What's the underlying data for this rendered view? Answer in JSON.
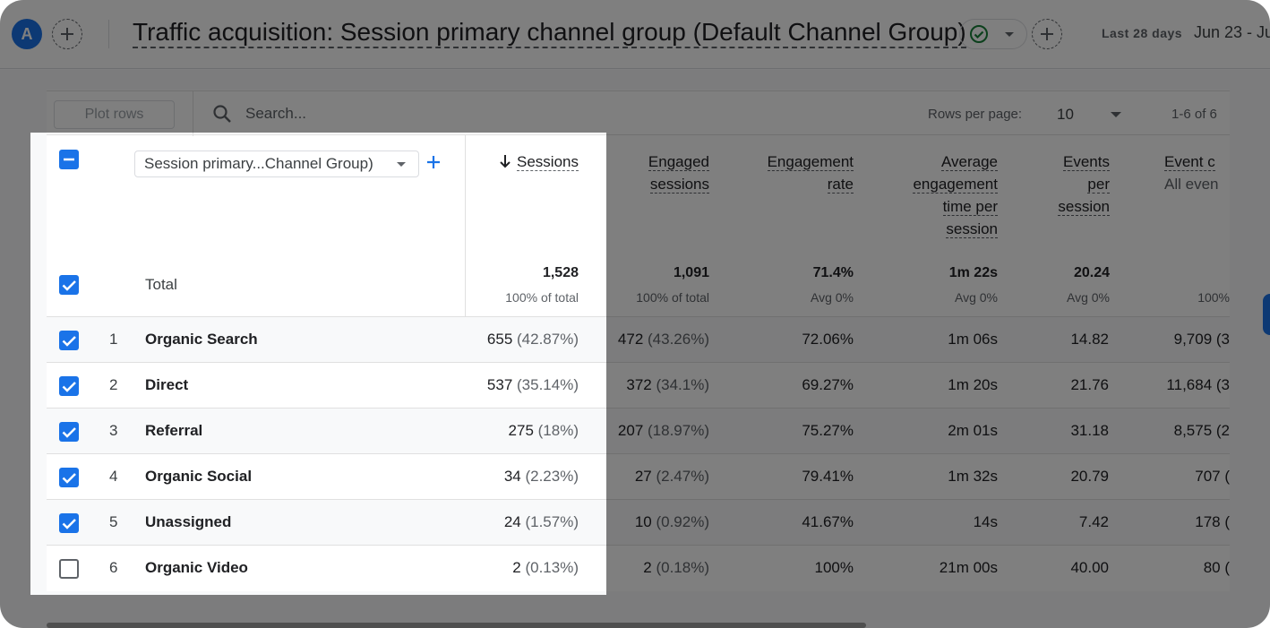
{
  "header": {
    "avatar_letter": "A",
    "title": "Traffic acquisition: Session primary channel group (Default Channel Group)",
    "date_label": "Last 28 days",
    "date_range": "Jun 23 - Ju"
  },
  "toolbar": {
    "plot_rows_label": "Plot rows",
    "search_placeholder": "Search...",
    "rows_per_page_label": "Rows per page:",
    "rows_per_page_value": "10",
    "pagination": "1-6 of 6"
  },
  "table": {
    "dimension_label": "Session primary...Channel Group)",
    "columns": {
      "sessions": "Sessions",
      "engaged": [
        "Engaged",
        "sessions"
      ],
      "engagement_rate": [
        "Engagement",
        "rate"
      ],
      "avg_time": [
        "Average",
        "engagement",
        "time per",
        "session"
      ],
      "events_per": [
        "Events",
        "per",
        "session"
      ],
      "event_count": "Event c",
      "event_count_sub": "All even"
    },
    "total": {
      "label": "Total",
      "sessions": "1,528",
      "sessions_sub": "100% of total",
      "engaged": "1,091",
      "engaged_sub": "100% of total",
      "engagement_rate": "71.4%",
      "engagement_rate_sub": "Avg 0%",
      "avg_time": "1m 22s",
      "avg_time_sub": "Avg 0%",
      "events_per": "20.24",
      "events_per_sub": "Avg 0%",
      "event_count_sub": "100%"
    },
    "rows": [
      {
        "idx": "1",
        "name": "Organic Search",
        "sessions": "655",
        "sessions_pct": "(42.87%)",
        "engaged": "472",
        "engaged_pct": "(43.26%)",
        "rate": "72.06%",
        "time": "1m 06s",
        "events": "14.82",
        "count": "9,709 (3",
        "checked": true
      },
      {
        "idx": "2",
        "name": "Direct",
        "sessions": "537",
        "sessions_pct": "(35.14%)",
        "engaged": "372",
        "engaged_pct": "(34.1%)",
        "rate": "69.27%",
        "time": "1m 20s",
        "events": "21.76",
        "count": "11,684 (3",
        "checked": true
      },
      {
        "idx": "3",
        "name": "Referral",
        "sessions": "275",
        "sessions_pct": "(18%)",
        "engaged": "207",
        "engaged_pct": "(18.97%)",
        "rate": "75.27%",
        "time": "2m 01s",
        "events": "31.18",
        "count": "8,575 (2",
        "checked": true
      },
      {
        "idx": "4",
        "name": "Organic Social",
        "sessions": "34",
        "sessions_pct": "(2.23%)",
        "engaged": "27",
        "engaged_pct": "(2.47%)",
        "rate": "79.41%",
        "time": "1m 32s",
        "events": "20.79",
        "count": "707 (",
        "checked": true
      },
      {
        "idx": "5",
        "name": "Unassigned",
        "sessions": "24",
        "sessions_pct": "(1.57%)",
        "engaged": "10",
        "engaged_pct": "(0.92%)",
        "rate": "41.67%",
        "time": "14s",
        "events": "7.42",
        "count": "178 (",
        "checked": true
      },
      {
        "idx": "6",
        "name": "Organic Video",
        "sessions": "2",
        "sessions_pct": "(0.13%)",
        "engaged": "2",
        "engaged_pct": "(0.18%)",
        "rate": "100%",
        "time": "21m 00s",
        "events": "40.00",
        "count": "80 (",
        "checked": false
      }
    ]
  },
  "colors": {
    "accent": "#1a73e8",
    "success": "#188038"
  }
}
